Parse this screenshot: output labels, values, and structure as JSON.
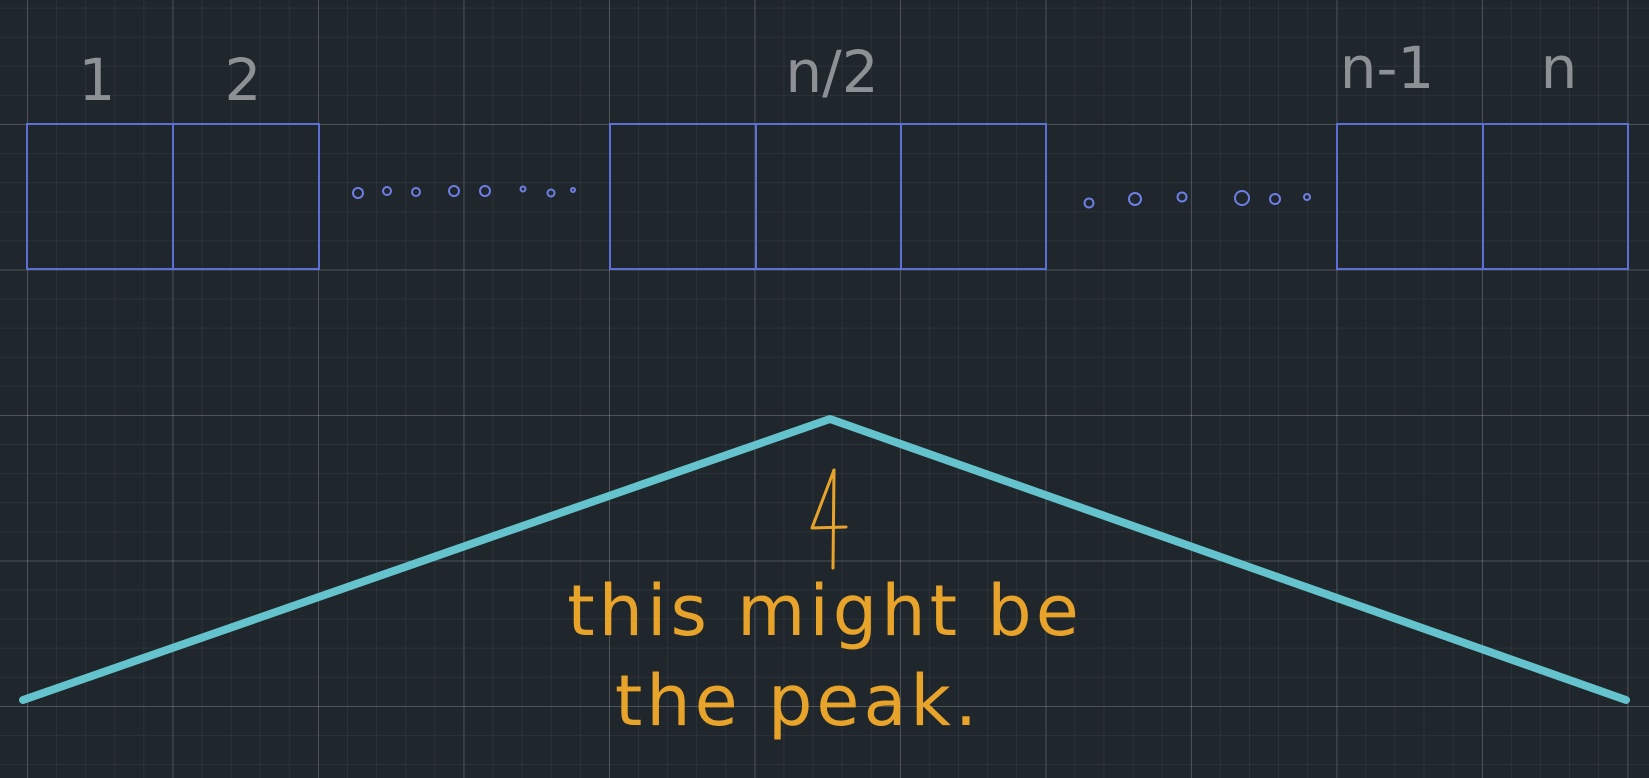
{
  "labels": {
    "first": "1",
    "second": "2",
    "middle": "n/2",
    "second_last": "n-1",
    "last": "n"
  },
  "annotation": {
    "line1": "this might be",
    "line2": "the peak."
  },
  "colors": {
    "background": "#1f262c",
    "cells": "#5c6fd6",
    "index_labels": "#8d9196",
    "peak_line": "#64c3cc",
    "annotation": "#e8a32a"
  }
}
